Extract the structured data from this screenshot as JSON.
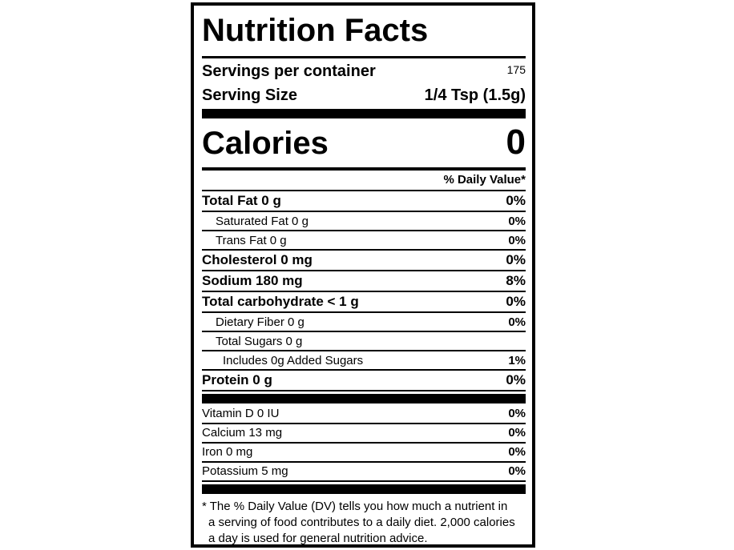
{
  "label": {
    "title": "Nutrition Facts",
    "servings_per_container": {
      "label": "Servings per container",
      "value": "175"
    },
    "serving_size": {
      "label": "Serving Size",
      "value": "1/4 Tsp (1.5g)"
    },
    "calories": {
      "label": "Calories",
      "value": "0"
    },
    "daily_value_header": "% Daily Value*",
    "nutrients": [
      {
        "name": "Total Fat 0 g",
        "dv": "0%",
        "style": "bold",
        "indent": 0
      },
      {
        "name": "Saturated Fat 0 g",
        "dv": "0%",
        "style": "regular",
        "indent": 1
      },
      {
        "name": "Trans Fat 0 g",
        "dv": "0%",
        "style": "regular",
        "indent": 1
      },
      {
        "name": "Cholesterol 0 mg",
        "dv": "0%",
        "style": "bold",
        "indent": 0
      },
      {
        "name": "Sodium 180 mg",
        "dv": "8%",
        "style": "bold",
        "indent": 0
      },
      {
        "name": "Total carbohydrate < 1 g",
        "dv": "0%",
        "style": "bold",
        "indent": 0
      },
      {
        "name": "Dietary Fiber 0 g",
        "dv": "0%",
        "style": "regular",
        "indent": 1
      },
      {
        "name": "Total Sugars 0 g",
        "dv": "",
        "style": "regular",
        "indent": 1
      },
      {
        "name": "Includes 0g Added Sugars",
        "dv": "1%",
        "style": "regular",
        "indent": 2
      },
      {
        "name": "Protein 0 g",
        "dv": "0%",
        "style": "bold",
        "indent": 0
      }
    ],
    "vitamins": [
      {
        "name": "Vitamin D 0 IU",
        "dv": "0%"
      },
      {
        "name": "Calcium 13 mg",
        "dv": "0%"
      },
      {
        "name": "Iron 0 mg",
        "dv": "0%"
      },
      {
        "name": "Potassium 5 mg",
        "dv": "0%"
      }
    ],
    "footnote_lines": [
      "* The % Daily Value (DV) tells you how much a nutrient in",
      "a serving of food contributes to a daily diet. 2,000 calories",
      "a day is used for general nutrition advice."
    ],
    "colors": {
      "ink": "#000000",
      "background": "#ffffff"
    }
  }
}
